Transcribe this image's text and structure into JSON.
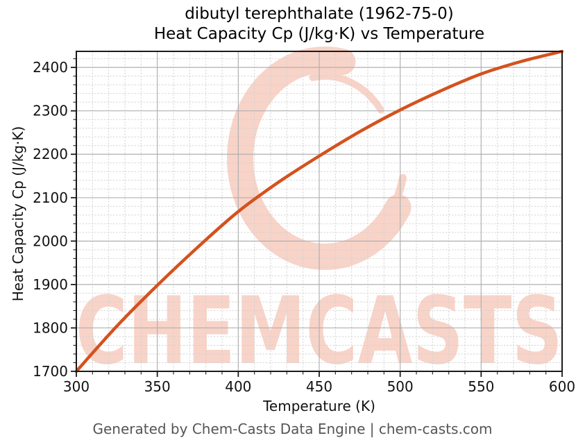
{
  "chart_data": {
    "type": "line",
    "title_line1": "dibutyl terephthalate (1962-75-0)",
    "title_line2": "Heat Capacity Cp (J/kg·K) vs Temperature",
    "xlabel": "Temperature (K)",
    "ylabel": "Heat Capacity Cp (J/kg·K)",
    "xlim": [
      300,
      600
    ],
    "ylim": [
      1700,
      2437
    ],
    "x_ticks": [
      300,
      350,
      400,
      450,
      500,
      550,
      600
    ],
    "y_ticks": [
      1700,
      1800,
      1900,
      2000,
      2100,
      2200,
      2300,
      2400
    ],
    "x_minor_step": 10,
    "y_minor_step": 20,
    "grid": true,
    "legend": false,
    "series": [
      {
        "name": "Heat Capacity Cp",
        "x": [
          300,
          325,
          350,
          375,
          400,
          425,
          450,
          475,
          500,
          525,
          550,
          575,
          600
        ],
        "y": [
          1700,
          1804,
          1898,
          1986,
          2068,
          2136,
          2196,
          2252,
          2302,
          2346,
          2385,
          2414,
          2437
        ],
        "color": "#d4521d"
      }
    ],
    "styles": {
      "line_width": 4.5,
      "major_grid_color": "#b0b0b0",
      "minor_grid_color": "#d2d2d2",
      "axis_color": "#1a1a1a",
      "tick_label_color": "#111111",
      "tick_label_size": 20
    }
  },
  "watermark": {
    "text": "CHEMCASTS",
    "logo": "brush-stroke-c-swirl",
    "color": "#f8d3c8"
  },
  "footer": {
    "text": "Generated by Chem-Casts Data Engine | chem-casts.com"
  }
}
